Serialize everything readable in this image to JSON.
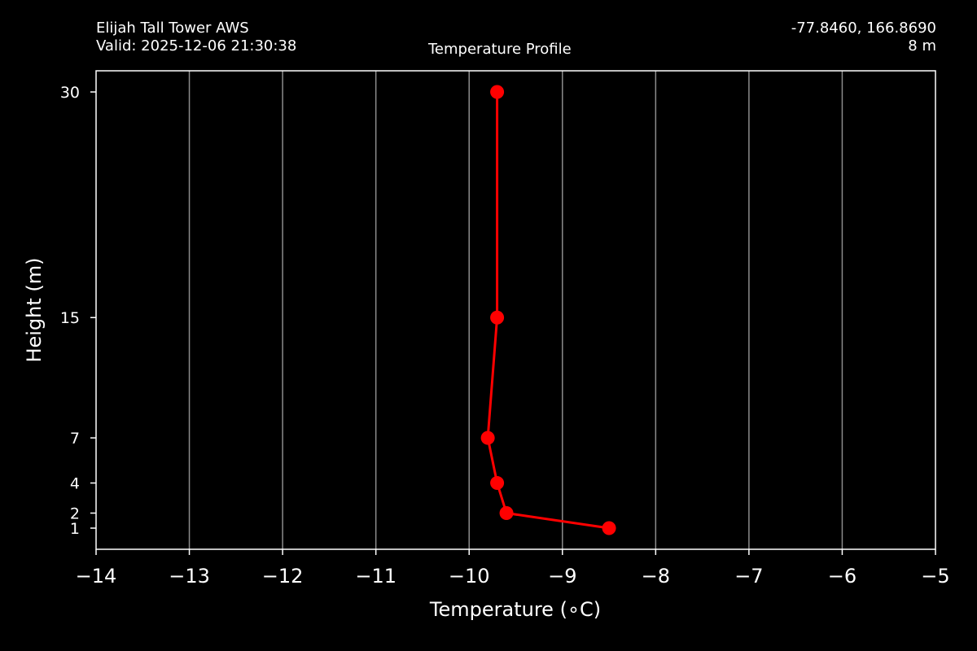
{
  "header": {
    "station": "Elijah Tall Tower AWS",
    "valid": "Valid: 2025-12-06 21:30:38",
    "coords": "-77.8460, 166.8690",
    "elevation": "8 m"
  },
  "chart_data": {
    "type": "line",
    "title": "Temperature Profile",
    "xlabel": "Temperature (∘C)",
    "ylabel": "Height (m)",
    "xlim": [
      -14,
      -5
    ],
    "ylim": [
      0,
      30
    ],
    "x_ticks": [
      -14,
      -13,
      -12,
      -11,
      -10,
      -9,
      -8,
      -7,
      -6,
      -5
    ],
    "x_tick_labels": [
      "−14",
      "−13",
      "−12",
      "−11",
      "−10",
      "−9",
      "−8",
      "−7",
      "−6",
      "−5"
    ],
    "y_ticks": [
      1,
      2,
      4,
      7,
      15,
      30
    ],
    "y_tick_labels": [
      "1",
      "2",
      "4",
      "7",
      "15",
      "30"
    ],
    "grid": "vertical",
    "series": [
      {
        "color": "#ff0000",
        "points": [
          {
            "height": 1,
            "temp": -8.5
          },
          {
            "height": 2,
            "temp": -9.6
          },
          {
            "height": 4,
            "temp": -9.7
          },
          {
            "height": 7,
            "temp": -9.8
          },
          {
            "height": 15,
            "temp": -9.7
          },
          {
            "height": 30,
            "temp": -9.7
          }
        ]
      }
    ]
  }
}
